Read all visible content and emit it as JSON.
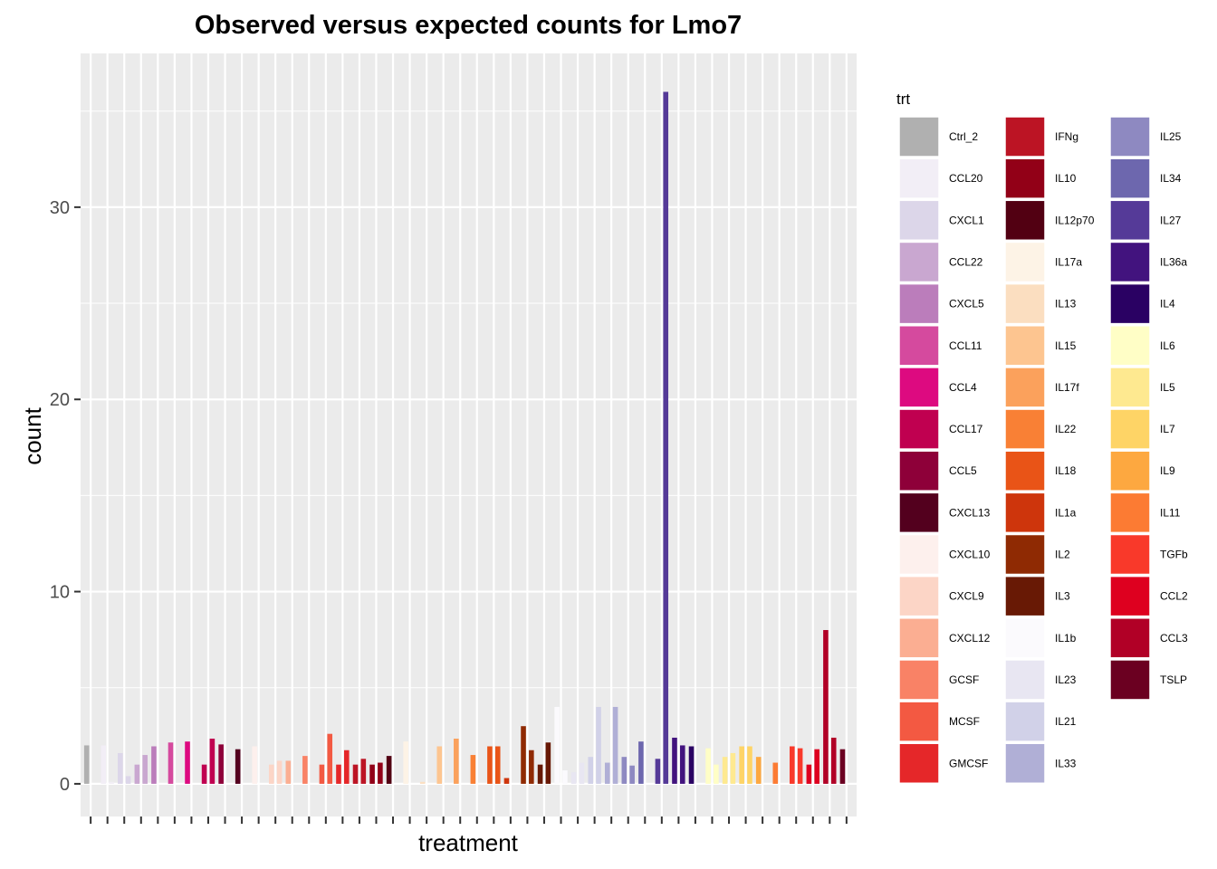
{
  "chart_data": {
    "type": "bar",
    "title": "Observed versus expected counts for Lmo7",
    "xlabel": "treatment",
    "ylabel": "count",
    "ylim": [
      -1.7,
      38
    ],
    "yticks": [
      0,
      10,
      20,
      30
    ],
    "ytick_labels": [
      "0",
      "10",
      "20",
      "30"
    ],
    "grid": true,
    "legend_position": "right",
    "legend_title": "trt",
    "legend_columns": 3,
    "groups": [
      {
        "trt": "Ctrl_2",
        "color": "#B0B0B0",
        "values": [
          2.0,
          0.0
        ]
      },
      {
        "trt": "CCL20",
        "color": "#F2EEF6",
        "values": [
          2.0,
          0.1
        ]
      },
      {
        "trt": "CXCL1",
        "color": "#DCD6E9",
        "values": [
          1.6,
          0.4
        ]
      },
      {
        "trt": "CCL22",
        "color": "#C9A7D0",
        "values": [
          1.0,
          1.5
        ]
      },
      {
        "trt": "CXCL5",
        "color": "#BB7DBB",
        "values": [
          1.95,
          0.0
        ]
      },
      {
        "trt": "CCL11",
        "color": "#D54A9E",
        "values": [
          2.15,
          0.0
        ]
      },
      {
        "trt": "CCL4",
        "color": "#DD0A80",
        "values": [
          2.2,
          0.0
        ]
      },
      {
        "trt": "CCL17",
        "color": "#C00050",
        "values": [
          1.0,
          2.35
        ]
      },
      {
        "trt": "CCL5",
        "color": "#8E0039",
        "values": [
          2.05,
          0.0
        ]
      },
      {
        "trt": "CXCL13",
        "color": "#53001E",
        "values": [
          1.8,
          0.0
        ]
      },
      {
        "trt": "CXCL10",
        "color": "#FDF0ED",
        "values": [
          1.95,
          0.0
        ]
      },
      {
        "trt": "CXCL9",
        "color": "#FCD5C6",
        "values": [
          1.0,
          1.2
        ]
      },
      {
        "trt": "CXCL12",
        "color": "#FBAE92",
        "values": [
          1.2,
          0.0
        ]
      },
      {
        "trt": "GCSF",
        "color": "#F98266",
        "values": [
          1.45,
          0.0
        ]
      },
      {
        "trt": "MCSF",
        "color": "#F35942",
        "values": [
          1.0,
          2.6
        ]
      },
      {
        "trt": "GMCSF",
        "color": "#E52729",
        "values": [
          1.0,
          1.75
        ]
      },
      {
        "trt": "IFNg",
        "color": "#BC1424",
        "values": [
          1.0,
          1.3
        ]
      },
      {
        "trt": "IL10",
        "color": "#920017",
        "values": [
          1.0,
          1.1
        ]
      },
      {
        "trt": "IL12p70",
        "color": "#520012",
        "values": [
          1.45,
          0.0
        ]
      },
      {
        "trt": "IL17a",
        "color": "#FDF3E6",
        "values": [
          2.2,
          0.0
        ]
      },
      {
        "trt": "IL13",
        "color": "#FBDEC0",
        "values": [
          0.1,
          0.0
        ]
      },
      {
        "trt": "IL15",
        "color": "#FDC590",
        "values": [
          1.95,
          0.0
        ]
      },
      {
        "trt": "IL17f",
        "color": "#FBA15C",
        "values": [
          2.35,
          0.0
        ]
      },
      {
        "trt": "IL22",
        "color": "#F98035",
        "values": [
          1.5,
          0.0
        ]
      },
      {
        "trt": "IL18",
        "color": "#E95417",
        "values": [
          1.95,
          1.95
        ]
      },
      {
        "trt": "IL1a",
        "color": "#CE350C",
        "values": [
          0.3,
          0.0
        ]
      },
      {
        "trt": "IL2",
        "color": "#8F2A03",
        "values": [
          3.0,
          1.75
        ]
      },
      {
        "trt": "IL3",
        "color": "#681905",
        "values": [
          1.0,
          2.15
        ]
      },
      {
        "trt": "IL1b",
        "color": "#FBFAFD",
        "values": [
          4.0,
          0.7
        ]
      },
      {
        "trt": "IL23",
        "color": "#E8E6F2",
        "values": [
          0.6,
          1.1
        ]
      },
      {
        "trt": "IL21",
        "color": "#D1D1E8",
        "values": [
          1.4,
          4.0
        ]
      },
      {
        "trt": "IL33",
        "color": "#B0AFD6",
        "values": [
          1.1,
          4.0
        ]
      },
      {
        "trt": "IL25",
        "color": "#8E89C1",
        "values": [
          1.4,
          0.95
        ]
      },
      {
        "trt": "IL34",
        "color": "#6D67AE",
        "values": [
          2.2,
          0.0
        ]
      },
      {
        "trt": "IL27",
        "color": "#553A98",
        "values": [
          1.3,
          36.0
        ]
      },
      {
        "trt": "IL36a",
        "color": "#42137E",
        "values": [
          2.4,
          2.0
        ]
      },
      {
        "trt": "IL4",
        "color": "#2A0163",
        "values": [
          1.95,
          0.0
        ]
      },
      {
        "trt": "IL6",
        "color": "#FFFEC6",
        "values": [
          1.85,
          1.0
        ]
      },
      {
        "trt": "IL5",
        "color": "#FEE990",
        "values": [
          1.4,
          1.6
        ]
      },
      {
        "trt": "IL7",
        "color": "#FED466",
        "values": [
          1.95,
          1.95
        ]
      },
      {
        "trt": "IL9",
        "color": "#FDA840",
        "values": [
          1.4,
          0.0
        ]
      },
      {
        "trt": "IL11",
        "color": "#FC7B33",
        "values": [
          1.1,
          0.0
        ]
      },
      {
        "trt": "TGFb",
        "color": "#F9392A",
        "values": [
          1.95,
          1.85
        ]
      },
      {
        "trt": "CCL2",
        "color": "#DE001F",
        "values": [
          1.0,
          1.8
        ]
      },
      {
        "trt": "CCL3",
        "color": "#B10026",
        "values": [
          8.0,
          2.4
        ]
      },
      {
        "trt": "TSLP",
        "color": "#6B0021",
        "values": [
          1.8,
          0.0
        ]
      }
    ]
  }
}
